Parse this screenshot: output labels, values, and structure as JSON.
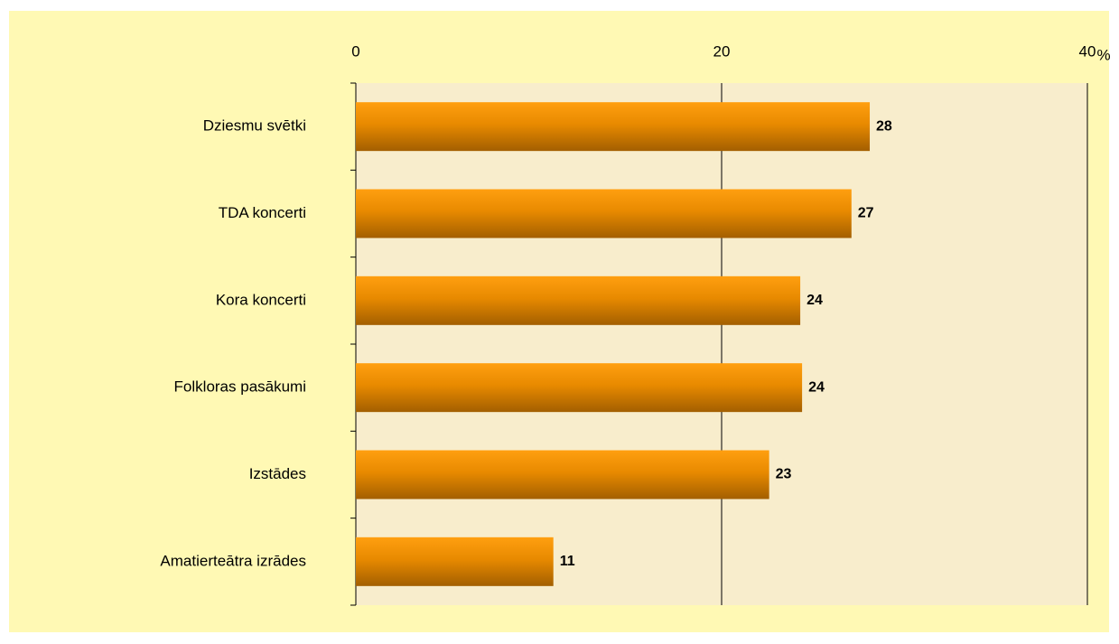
{
  "chart_data": {
    "type": "bar",
    "orientation": "horizontal",
    "categories": [
      "Dziesmu svētki",
      "TDA koncerti",
      "Kora koncerti",
      "Folkloras pasākumi",
      "Izstādes",
      "Amatierteātra izrādes"
    ],
    "values": [
      28.1,
      27.1,
      24.3,
      24.4,
      22.6,
      10.8
    ],
    "value_labels": [
      "28",
      "27",
      "24",
      "24",
      "23",
      "11"
    ],
    "color": "#f39200",
    "xlim": [
      0,
      40
    ],
    "xticks": [
      0,
      20,
      40
    ],
    "x_label": "%",
    "grid": true
  }
}
